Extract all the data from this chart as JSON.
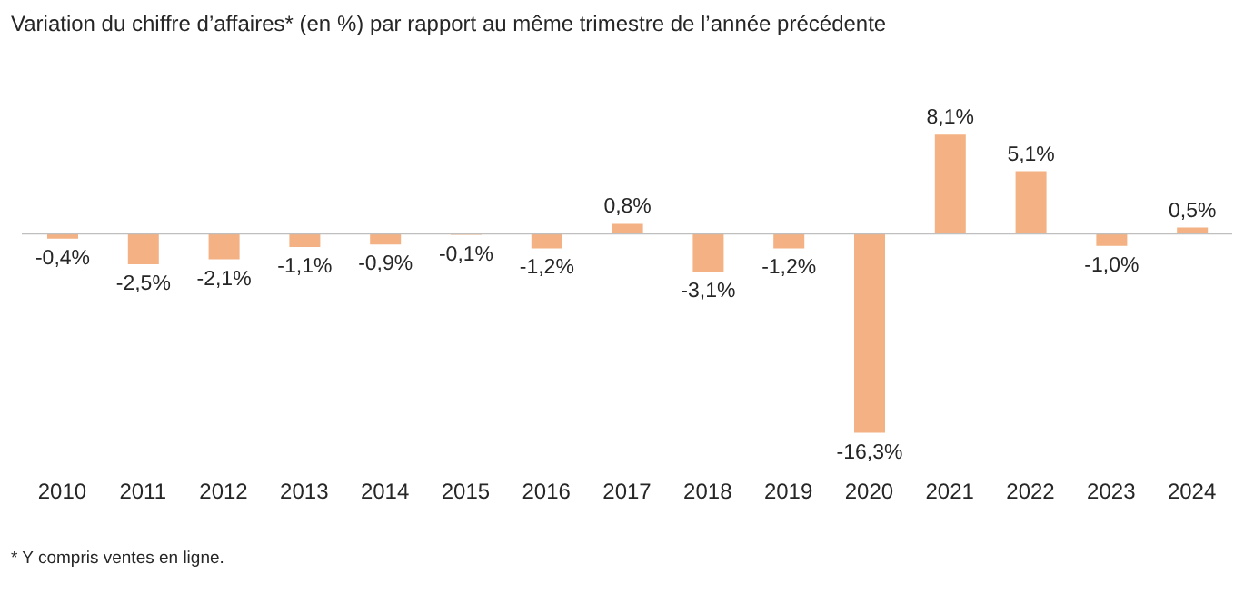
{
  "chart_data": {
    "type": "bar",
    "title": "Variation du chiffre d’affaires* (en %) par rapport au même trimestre de l’année précédente",
    "categories": [
      "2010",
      "2011",
      "2012",
      "2013",
      "2014",
      "2015",
      "2016",
      "2017",
      "2018",
      "2019",
      "2020",
      "2021",
      "2022",
      "2023",
      "2024"
    ],
    "values": [
      -0.4,
      -2.5,
      -2.1,
      -1.1,
      -0.9,
      -0.1,
      -1.2,
      0.8,
      -3.1,
      -1.2,
      -16.3,
      8.1,
      5.1,
      -1.0,
      0.5
    ],
    "value_labels": [
      "-0,4%",
      "-2,5%",
      "-2,1%",
      "-1,1%",
      "-0,9%",
      "-0,1%",
      "-1,2%",
      "0,8%",
      "-3,1%",
      "-1,2%",
      "-16,3%",
      "8,1%",
      "5,1%",
      "-1,0%",
      "0,5%"
    ],
    "color": "#f4b183",
    "annotations": [
      "* Y compris ventes en ligne."
    ]
  }
}
